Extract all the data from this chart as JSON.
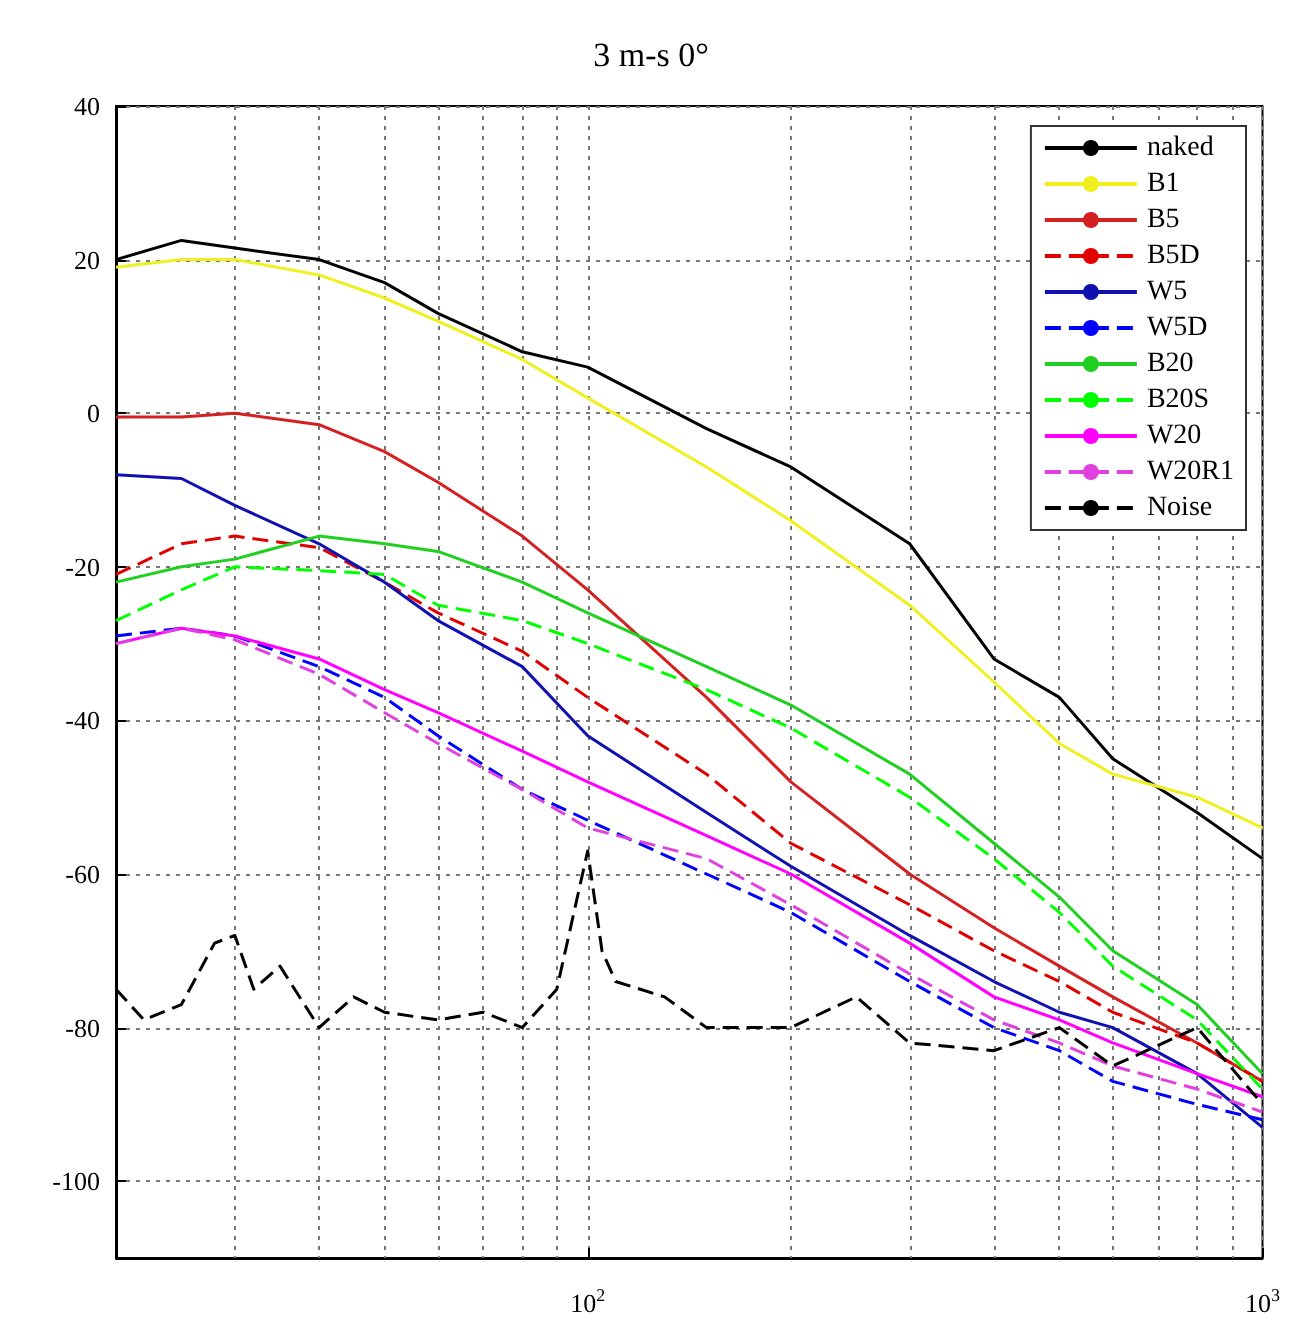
{
  "chart_data": {
    "type": "line",
    "title": "3 m-s 0°",
    "x": [
      20,
      25,
      30,
      40,
      50,
      60,
      80,
      100,
      150,
      200,
      300,
      400,
      500,
      600,
      800,
      1000
    ],
    "series": [
      {
        "name": "naked",
        "color": "#000000",
        "line_style": "solid",
        "values": [
          20,
          22.5,
          21.5,
          20,
          17,
          13,
          8,
          6,
          -2,
          -7,
          -17,
          -32,
          -37,
          -45,
          -52,
          -58
        ]
      },
      {
        "name": "B1",
        "color": "#f0f020",
        "line_style": "solid",
        "values": [
          19,
          20,
          20,
          18,
          15,
          12,
          7,
          2,
          -7,
          -14,
          -25,
          -35,
          -43,
          -47,
          -50,
          -54
        ]
      },
      {
        "name": "B5",
        "color": "#d42020",
        "line_style": "solid",
        "values": [
          -0.5,
          -0.5,
          0,
          -1.5,
          -5,
          -9,
          -16,
          -23,
          -37,
          -48,
          -60,
          -67,
          -72,
          -76,
          -82,
          -87
        ]
      },
      {
        "name": "B5D",
        "color": "#e00000",
        "line_style": "dashed",
        "values": [
          -21,
          -17,
          -16,
          -17.5,
          -22,
          -26,
          -31,
          -37,
          -47,
          -56,
          -64,
          -70,
          -74,
          -78,
          -82,
          -87
        ]
      },
      {
        "name": "W5",
        "color": "#1010b0",
        "line_style": "solid",
        "values": [
          -8,
          -8.5,
          -12,
          -17,
          -22,
          -27,
          -33,
          -42,
          -52,
          -59,
          -68,
          -74,
          -78,
          -80,
          -86,
          -93
        ]
      },
      {
        "name": "W5D",
        "color": "#0000ff",
        "line_style": "dashed",
        "values": [
          -29,
          -28,
          -29,
          -33,
          -37,
          -42,
          -49,
          -53,
          -60,
          -65,
          -74,
          -80,
          -83,
          -87,
          -90,
          -92
        ]
      },
      {
        "name": "B20",
        "color": "#20d020",
        "line_style": "solid",
        "values": [
          -22,
          -20,
          -19,
          -16,
          -17,
          -18,
          -22,
          -26,
          -33,
          -38,
          -47,
          -56,
          -63,
          -70,
          -77,
          -86
        ]
      },
      {
        "name": "B20S",
        "color": "#00ff00",
        "line_style": "dashed",
        "values": [
          -27,
          -23,
          -20,
          -20.5,
          -21,
          -25,
          -27,
          -30,
          -36,
          -41,
          -50,
          -58,
          -65,
          -72,
          -79,
          -88
        ]
      },
      {
        "name": "W20",
        "color": "#ff00ff",
        "line_style": "solid",
        "values": [
          -30,
          -28,
          -29,
          -32,
          -36,
          -39,
          -44,
          -48,
          -55,
          -60,
          -69,
          -76,
          -79,
          -82,
          -86,
          -89
        ]
      },
      {
        "name": "W20R1",
        "color": "#e040e0",
        "line_style": "dashed",
        "values": [
          -30,
          -28,
          -29.5,
          -34,
          -39,
          -43,
          -49,
          -54,
          -58,
          -64,
          -73,
          -79,
          -82,
          -85,
          -88,
          -91
        ]
      },
      {
        "name": "Noise",
        "color": "#000000",
        "line_style": "dashed",
        "x": [
          20,
          22,
          25,
          28,
          30,
          32,
          35,
          40,
          45,
          50,
          60,
          70,
          80,
          90,
          100,
          105,
          110,
          130,
          150,
          200,
          250,
          300,
          400,
          500,
          600,
          800,
          1000
        ],
        "values": [
          -75,
          -79,
          -77,
          -69,
          -68,
          -75,
          -72,
          -80,
          -76,
          -78,
          -79,
          -78,
          -80,
          -75,
          -57,
          -70,
          -74,
          -76,
          -80,
          -80,
          -76,
          -82,
          -83,
          -80,
          -85,
          -80,
          -90
        ]
      }
    ],
    "log": "x",
    "xlim": [
      20,
      1000
    ],
    "xticks": [
      {
        "value": 100,
        "label": "10$^{2}$"
      },
      {
        "value": 1000,
        "label": "10$^{3}$"
      }
    ],
    "ylim": [
      -110,
      40
    ],
    "yticks": [
      -100,
      -80,
      -60,
      -40,
      -20,
      0,
      20,
      40
    ],
    "grid": true,
    "legend": "top right"
  }
}
